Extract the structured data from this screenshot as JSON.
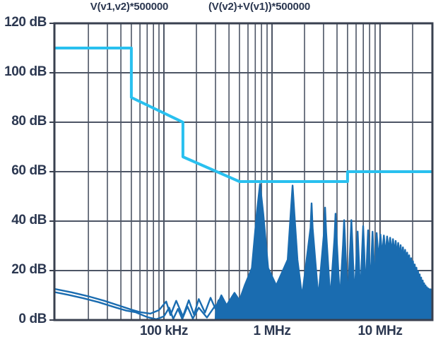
{
  "colors": {
    "background": "#ffffff",
    "text": "#2b3750",
    "grid": "#4d5565",
    "border": "#39404f",
    "mask_line": "#29c0ef",
    "spectrum_line": "#1a6cb0"
  },
  "chart_data": {
    "type": "line",
    "title": "",
    "legend": [
      {
        "label": "V(v1,v2)*500000"
      },
      {
        "label": "(V(v2)+V(v1))*500000"
      }
    ],
    "x_axis": {
      "scale": "log",
      "unit": "MHz",
      "min": 0.0097,
      "max": 30.5,
      "minor_grid": "2-9 per decade",
      "ticks": [
        {
          "f": 0.1,
          "label": "100 kHz"
        },
        {
          "f": 1,
          "label": "1 MHz"
        },
        {
          "f": 10,
          "label": "10 MHz"
        }
      ]
    },
    "y_axis": {
      "unit": "dB",
      "min": 0,
      "max": 120,
      "step": 20,
      "ticks": [
        {
          "v": 120,
          "label": "120 dB"
        },
        {
          "v": 100,
          "label": "100 dB"
        },
        {
          "v": 80,
          "label": "80 dB"
        },
        {
          "v": 60,
          "label": "60 dB"
        },
        {
          "v": 40,
          "label": "40 dB"
        },
        {
          "v": 20,
          "label": "20 dB"
        },
        {
          "v": 0,
          "label": "0 dB"
        }
      ]
    },
    "series": [
      {
        "name": "emission-limit-mask",
        "style": "step-line",
        "color": "#29c0ef",
        "points_f_dB": [
          [
            0.0097,
            110
          ],
          [
            0.05,
            110
          ],
          [
            0.05,
            90
          ],
          [
            0.15,
            80
          ],
          [
            0.15,
            66
          ],
          [
            0.5,
            56
          ],
          [
            5,
            56
          ],
          [
            5,
            60
          ],
          [
            30.5,
            60
          ]
        ]
      },
      {
        "name": "spectrum-baseline-a",
        "style": "line",
        "color": "#1a6cb0",
        "points_f_dB": [
          [
            0.0097,
            12.6
          ],
          [
            0.014,
            11.2
          ],
          [
            0.02,
            9.6
          ],
          [
            0.028,
            7.8
          ],
          [
            0.04,
            5.6
          ],
          [
            0.05,
            4.2
          ],
          [
            0.06,
            3.2
          ],
          [
            0.075,
            2.6
          ],
          [
            0.09,
            4.0
          ],
          [
            0.105,
            7.5
          ],
          [
            0.115,
            2.0
          ],
          [
            0.13,
            7.8
          ],
          [
            0.15,
            1.5
          ],
          [
            0.17,
            8.0
          ],
          [
            0.19,
            2.2
          ],
          [
            0.21,
            8.5
          ],
          [
            0.24,
            3.0
          ],
          [
            0.27,
            9.0
          ],
          [
            0.3,
            4.5
          ],
          [
            0.32,
            8.0
          ]
        ]
      },
      {
        "name": "spectrum-baseline-b",
        "style": "line",
        "color": "#1a6cb0",
        "points_f_dB": [
          [
            0.0097,
            11.3
          ],
          [
            0.013,
            10.2
          ],
          [
            0.018,
            8.8
          ],
          [
            0.025,
            7.2
          ],
          [
            0.035,
            5.2
          ],
          [
            0.045,
            3.8
          ],
          [
            0.055,
            3.1
          ],
          [
            0.07,
            1.2
          ],
          [
            0.085,
            0.3
          ],
          [
            0.1,
            1.5
          ],
          [
            0.112,
            5.0
          ],
          [
            0.122,
            0.5
          ],
          [
            0.135,
            4.5
          ],
          [
            0.148,
            0.4
          ],
          [
            0.165,
            5.5
          ],
          [
            0.185,
            0.6
          ],
          [
            0.21,
            5.0
          ],
          [
            0.25,
            1.0
          ],
          [
            0.3,
            6.0
          ],
          [
            0.36,
            2.0
          ],
          [
            0.43,
            7.0
          ],
          [
            0.5,
            6.0
          ]
        ]
      },
      {
        "name": "spectrum-harmonics",
        "style": "comb",
        "color": "#1a6cb0",
        "fundamental_MHz": 0.775,
        "peaks_dB": [
          55,
          54.4,
          47.2,
          45.5,
          43.0,
          40.4,
          40.4,
          35.8,
          38.0,
          36.3,
          35.7,
          35.2,
          34.6,
          34.2,
          33.8,
          33.3,
          32.7,
          32.0,
          31.2,
          30.3,
          29.4,
          28.4,
          27.3,
          26.2,
          25.0,
          23.8,
          22.5,
          21.2,
          19.8,
          18.5,
          17.2,
          16.0,
          14.9,
          14.0,
          13.3,
          12.8,
          12.5,
          12.4,
          12.5,
          12.7
        ],
        "valleys_dB": [
          14,
          9.5,
          9,
          8.5,
          8,
          8,
          8.5,
          9.5,
          10.5,
          11.5,
          12.5,
          24,
          26,
          26,
          28,
          27,
          27,
          26,
          25,
          24,
          23.5,
          22.5,
          21.5,
          20,
          19,
          18,
          16.5,
          15,
          14,
          12.5,
          11,
          10,
          9,
          8,
          8,
          8,
          7.5,
          7.5,
          7.5
        ],
        "lead_in_f_dB": [
          [
            0.3,
            0
          ],
          [
            0.305,
            5.0
          ],
          [
            0.34,
            10.0
          ],
          [
            0.38,
            6.0
          ],
          [
            0.45,
            11.0
          ],
          [
            0.5,
            8.0
          ],
          [
            0.56,
            14.0
          ]
        ]
      }
    ]
  }
}
